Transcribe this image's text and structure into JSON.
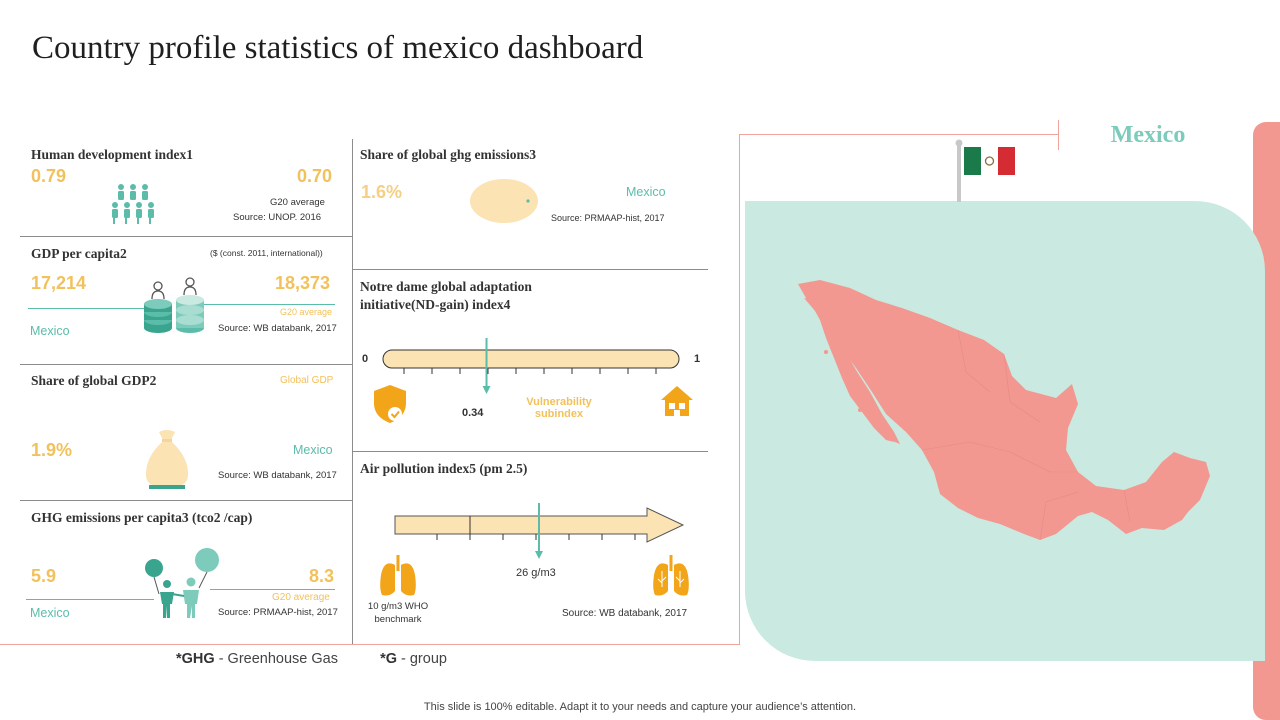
{
  "title": "Country profile statistics of mexico dashboard",
  "colors": {
    "teal": "#5bbcaa",
    "yellow": "#f2c15c",
    "light_yellow": "#fbe3b4",
    "pink": "#f29891",
    "mint": "#c9e9e1"
  },
  "country_label": "Mexico",
  "hdi": {
    "title": "Human development index1",
    "mexico_value": "0.79",
    "g20_value": "0.70",
    "g20_label": "G20 average",
    "source": "Source: UNOP.  2016",
    "icon": "people-group-icon"
  },
  "gdp_capita": {
    "title": "GDP per capita2",
    "unit_note": "($ (const. 2011, international))",
    "mexico_value": "17,214",
    "g20_value": "18,373",
    "g20_label": "G20 average",
    "country_label": "Mexico",
    "source": "Source: WB databank, 2017",
    "icon": "coin-stacks-icon"
  },
  "share_gdp": {
    "title": "Share of global GDP2",
    "global_label": "Global GDP",
    "value": "1.9%",
    "country_label": "Mexico",
    "source": "Source: WB databank, 2017",
    "icon": "money-bag-icon"
  },
  "ghg_capita": {
    "title": "GHG emissions per capita3 (tco2 /cap)",
    "mexico_value": "5.9",
    "g20_value": "8.3",
    "g20_label": "G20 average",
    "country_label": "Mexico",
    "source": "Source: PRMAAP-hist, 2017",
    "icon": "people-balloons-icon"
  },
  "share_ghg": {
    "title": "Share of global ghg emissions3",
    "value": "1.6%",
    "country_label": "Mexico",
    "source": "Source: PRMAAP-hist, 2017"
  },
  "nd_gain": {
    "title_line1": "Notre dame global adaptation",
    "title_line2": "initiative(ND-gain) index4",
    "min_label": "0",
    "max_label": "1",
    "value": 0.34,
    "value_label": "0.34",
    "subindex_line1": "Vulnerability",
    "subindex_line2": "subindex",
    "left_icon": "shield-check-icon",
    "right_icon": "house-icon"
  },
  "air_pollution": {
    "title": "Air pollution index5 (pm 2.5)",
    "value_label": "26 g/m3",
    "benchmark_line1": "10 g/m3 WHO",
    "benchmark_line2": "benchmark",
    "source": "Source: WB databank, 2017",
    "icon": "lungs-icon"
  },
  "notes": {
    "ghg_abbr": "*GHG",
    "ghg_text": " - Greenhouse  Gas",
    "g_abbr": "*G",
    "g_text": " - group"
  },
  "footer": "This slide is 100% editable. Adapt it to your needs and capture your audience’s attention.",
  "map_icon": "mexico-map-icon",
  "flag_icon": "mexico-flag-icon"
}
